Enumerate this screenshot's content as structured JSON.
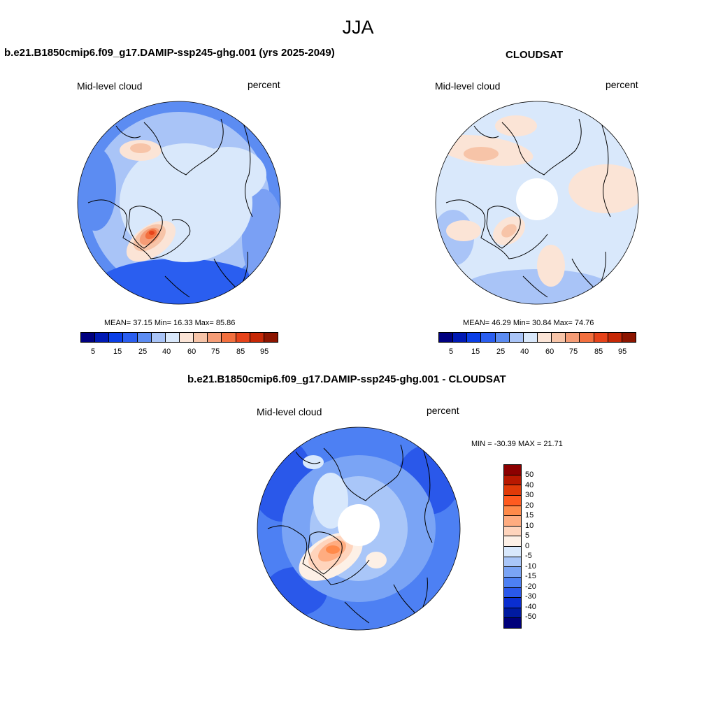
{
  "figure": {
    "season": "JJA"
  },
  "panels": [
    {
      "title": "b.e21.B1850cmip6.f09_g17.DAMIP-ssp245-ghg.001 (yrs 2025-2049)",
      "left_label": "Mid-level cloud",
      "right_label": "percent",
      "stats": "MEAN=  37.15  Min=  16.33  Max=  85.86",
      "colorbar_labels": [
        "5",
        "15",
        "25",
        "40",
        "60",
        "75",
        "85",
        "95"
      ]
    },
    {
      "title": "CLOUDSAT",
      "left_label": "Mid-level cloud",
      "right_label": "percent",
      "stats": "MEAN=  46.29  Min=  30.84  Max=  74.76",
      "colorbar_labels": [
        "5",
        "15",
        "25",
        "40",
        "60",
        "75",
        "85",
        "95"
      ]
    },
    {
      "title": "b.e21.B1850cmip6.f09_g17.DAMIP-ssp245-ghg.001 - CLOUDSAT",
      "left_label": "Mid-level cloud",
      "right_label": "percent",
      "stats": "MIN = -30.39 MAX =  21.71",
      "colorbar_labels": [
        "50",
        "40",
        "30",
        "20",
        "15",
        "10",
        "5",
        "0",
        "-5",
        "-10",
        "-15",
        "-20",
        "-30",
        "-40",
        "-50"
      ]
    }
  ],
  "colors": {
    "abs_scale": [
      "#00007f",
      "#0019b4",
      "#0a3ee6",
      "#2a5ef0",
      "#5c8cf2",
      "#a9c4f7",
      "#d9e8fb",
      "#fbe4d6",
      "#f7c4a8",
      "#f59c76",
      "#f3703f",
      "#e6431a",
      "#c62806",
      "#8c1500"
    ],
    "diff_scale": [
      "#8c0000",
      "#b81800",
      "#e03a08",
      "#ff5a1f",
      "#ff8a4a",
      "#ffac80",
      "#ffd4bc",
      "#fdf0e6",
      "#d8e8fc",
      "#a9c6f8",
      "#7aa4f5",
      "#4d80f3",
      "#2a58ea",
      "#0a2ed0",
      "#001aa0",
      "#00007a"
    ]
  }
}
